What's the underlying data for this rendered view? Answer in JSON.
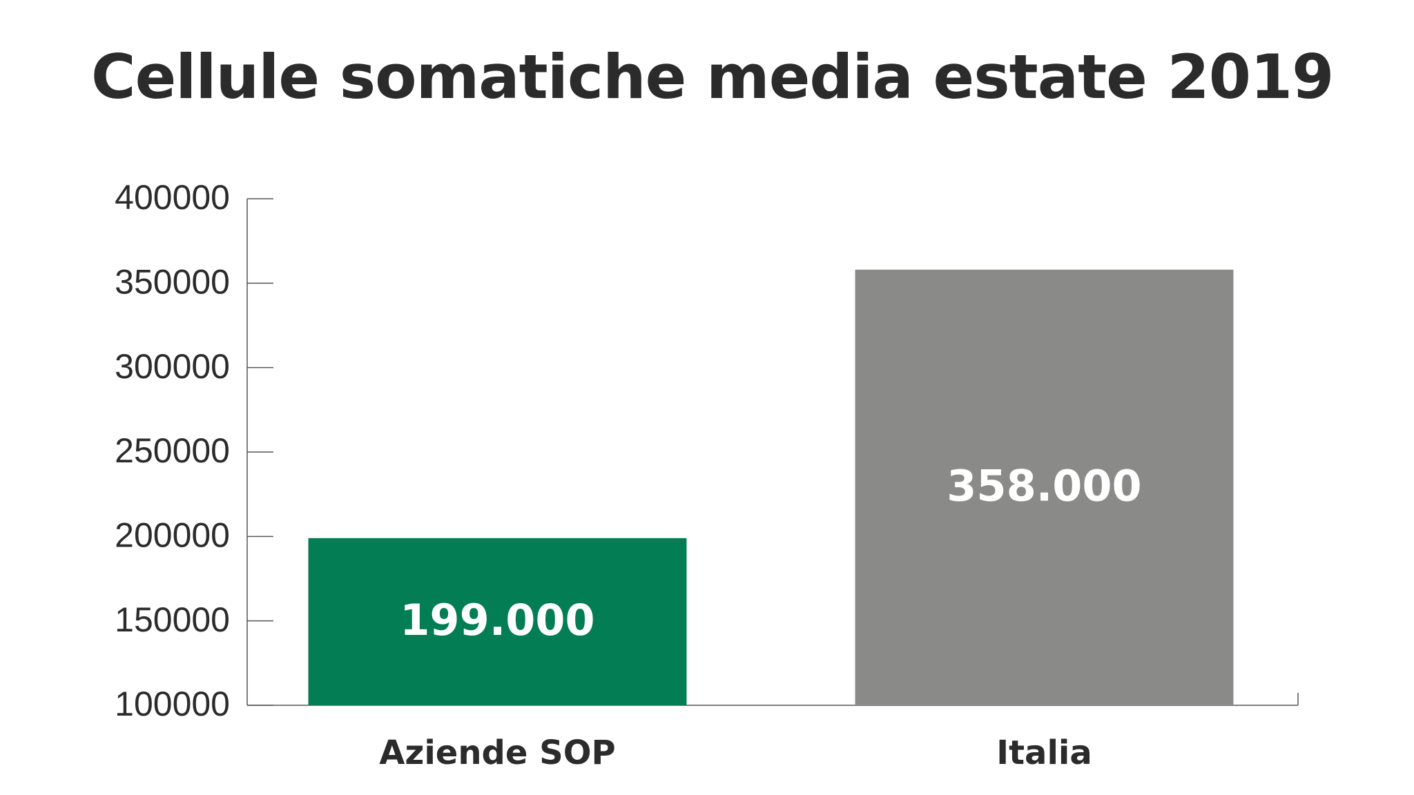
{
  "chart_data": {
    "type": "bar",
    "title": "Cellule somatiche media estate 2019",
    "xlabel": "",
    "ylabel": "",
    "categories": [
      "Aziende SOP",
      "Italia"
    ],
    "values": [
      199000,
      358000
    ],
    "data_labels": [
      "199.000",
      "358.000"
    ],
    "colors": [
      "#037d53",
      "#8a8a88"
    ],
    "ylim": [
      100000,
      400000
    ],
    "yticks": [
      100000,
      150000,
      200000,
      250000,
      300000,
      350000,
      400000
    ],
    "ytick_labels": [
      "100000",
      "150000",
      "200000",
      "250000",
      "300000",
      "350000",
      "400000"
    ],
    "grid": false,
    "legend": false
  }
}
